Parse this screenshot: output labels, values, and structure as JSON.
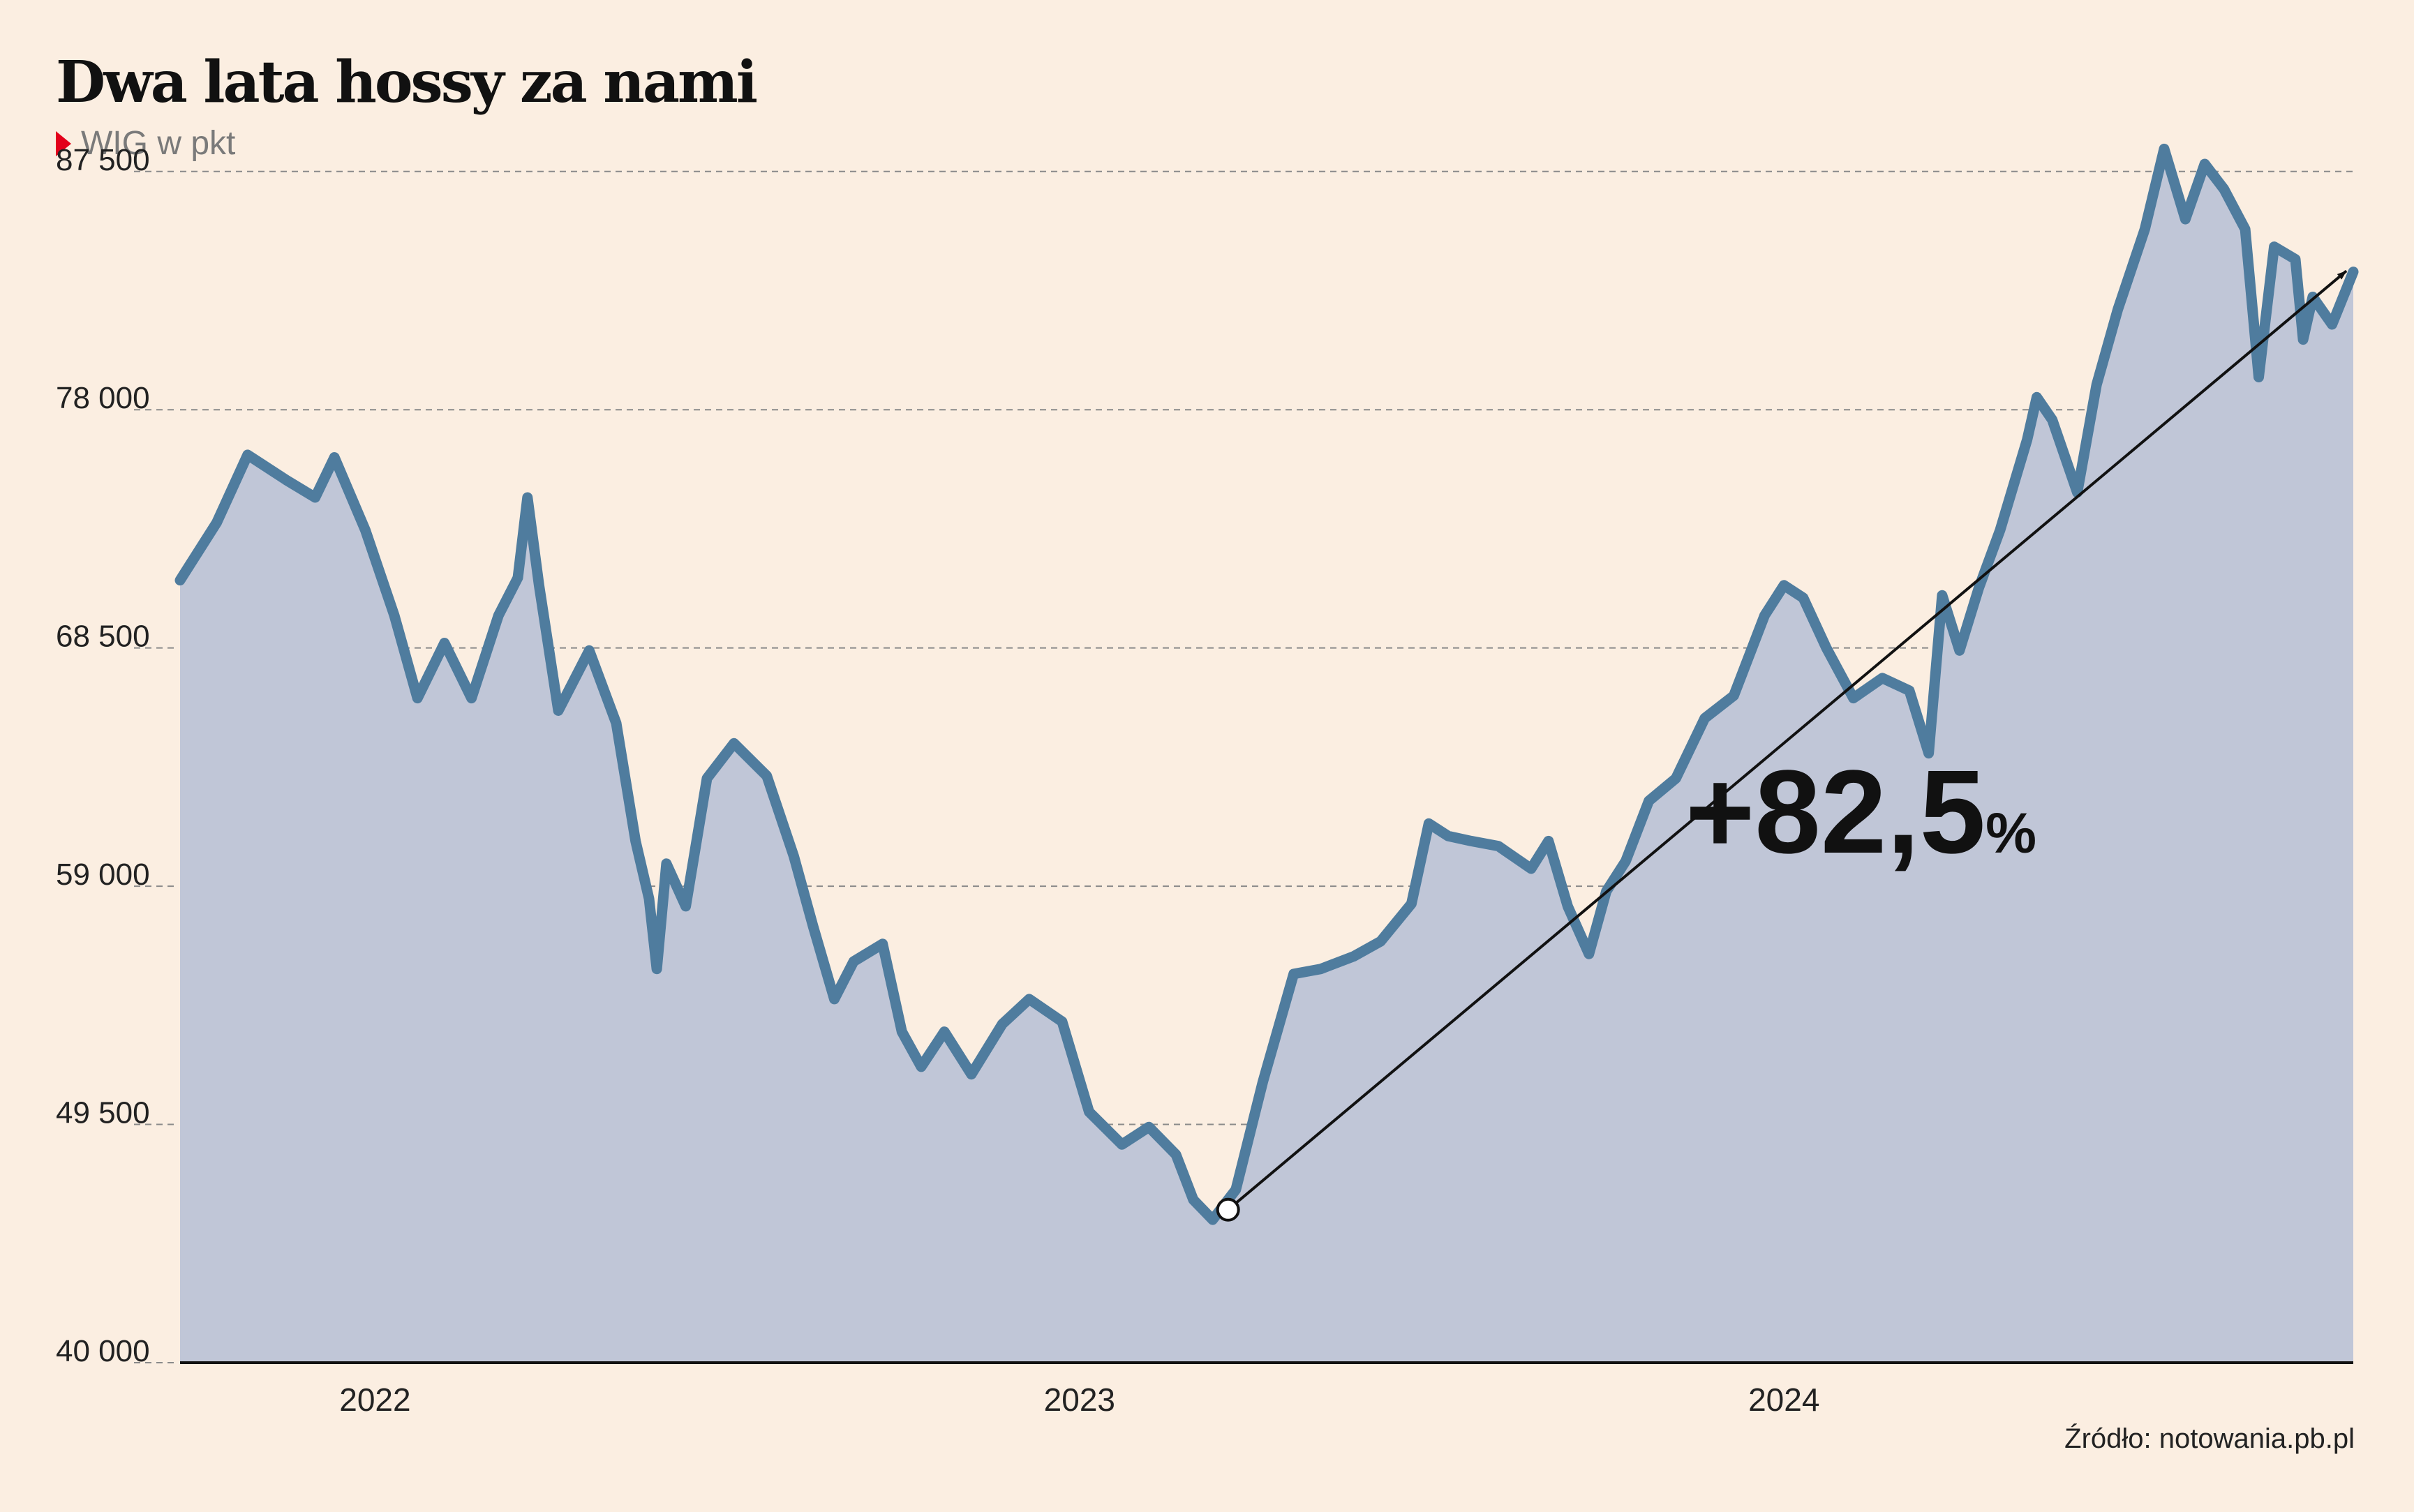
{
  "header": {
    "title": "Dwa lata hossy za nami",
    "subtitle": "WIG w pkt"
  },
  "footer": {
    "source": "Źródło: notowania.pb.pl"
  },
  "annotation": {
    "change_big": "+82,5",
    "change_unit": "%"
  },
  "colors": {
    "background": "#fbeee1",
    "line": "#4f7c9e",
    "area": "#c0c6d7",
    "marker_triangle": "#e3001b"
  },
  "chart_data": {
    "type": "area",
    "title": "Dwa lata hossy za nami",
    "subtitle": "WIG w pkt",
    "xlabel": "",
    "ylabel": "",
    "x_range": [
      "2021-10-01",
      "2024-10-31"
    ],
    "ylim": [
      40000,
      91000
    ],
    "y_ticks": [
      40000,
      49500,
      59000,
      68500,
      78000,
      87500
    ],
    "y_tick_labels": [
      "40 000",
      "49 500",
      "59 000",
      "68 500",
      "78 000",
      "87 500"
    ],
    "x_ticks": [
      "2022-01-01",
      "2023-01-01",
      "2024-01-01"
    ],
    "x_tick_labels": [
      "2022",
      "2023",
      "2024"
    ],
    "grid": "horizontal dashed",
    "series": [
      {
        "name": "",
        "points": [
          [
            "2021-10-01",
            71200
          ],
          [
            "2021-10-20",
            73500
          ],
          [
            "2021-11-05",
            76200
          ],
          [
            "2021-11-25",
            75200
          ],
          [
            "2021-12-10",
            74500
          ],
          [
            "2021-12-20",
            76100
          ],
          [
            "2022-01-05",
            73200
          ],
          [
            "2022-01-20",
            69800
          ],
          [
            "2022-02-01",
            66500
          ],
          [
            "2022-02-15",
            68700
          ],
          [
            "2022-03-01",
            66500
          ],
          [
            "2022-03-15",
            69800
          ],
          [
            "2022-03-25",
            71300
          ],
          [
            "2022-03-30",
            74500
          ],
          [
            "2022-04-05",
            71000
          ],
          [
            "2022-04-15",
            66000
          ],
          [
            "2022-05-01",
            68400
          ],
          [
            "2022-05-15",
            65500
          ],
          [
            "2022-05-25",
            60800
          ],
          [
            "2022-06-01",
            58500
          ],
          [
            "2022-06-05",
            55700
          ],
          [
            "2022-06-10",
            59900
          ],
          [
            "2022-06-20",
            58200
          ],
          [
            "2022-07-01",
            63300
          ],
          [
            "2022-07-15",
            64700
          ],
          [
            "2022-08-01",
            63400
          ],
          [
            "2022-08-15",
            60200
          ],
          [
            "2022-08-25",
            57400
          ],
          [
            "2022-09-05",
            54500
          ],
          [
            "2022-09-15",
            56000
          ],
          [
            "2022-09-30",
            56700
          ],
          [
            "2022-10-10",
            53200
          ],
          [
            "2022-10-20",
            51800
          ],
          [
            "2022-11-01",
            53200
          ],
          [
            "2022-11-15",
            51500
          ],
          [
            "2022-12-01",
            53500
          ],
          [
            "2022-12-15",
            54500
          ],
          [
            "2023-01-01",
            53600
          ],
          [
            "2023-01-15",
            50000
          ],
          [
            "2023-02-01",
            48700
          ],
          [
            "2023-02-15",
            49400
          ],
          [
            "2023-03-01",
            48300
          ],
          [
            "2023-03-10",
            46500
          ],
          [
            "2023-03-20",
            45700
          ],
          [
            "2023-04-01",
            46900
          ],
          [
            "2023-04-15",
            51200
          ],
          [
            "2023-05-01",
            55500
          ],
          [
            "2023-05-15",
            55700
          ],
          [
            "2023-06-01",
            56200
          ],
          [
            "2023-06-15",
            56800
          ],
          [
            "2023-07-01",
            58300
          ],
          [
            "2023-07-10",
            61500
          ],
          [
            "2023-07-20",
            61000
          ],
          [
            "2023-08-01",
            60800
          ],
          [
            "2023-08-15",
            60600
          ],
          [
            "2023-09-01",
            59700
          ],
          [
            "2023-09-10",
            60800
          ],
          [
            "2023-09-20",
            58200
          ],
          [
            "2023-10-01",
            56300
          ],
          [
            "2023-10-10",
            58800
          ],
          [
            "2023-10-20",
            60000
          ],
          [
            "2023-11-01",
            62400
          ],
          [
            "2023-11-15",
            63300
          ],
          [
            "2023-11-30",
            65700
          ],
          [
            "2023-12-15",
            66600
          ],
          [
            "2023-12-31",
            69800
          ],
          [
            "2024-01-10",
            71000
          ],
          [
            "2024-01-20",
            70500
          ],
          [
            "2024-02-01",
            68500
          ],
          [
            "2024-02-15",
            66500
          ],
          [
            "2024-03-01",
            67300
          ],
          [
            "2024-03-15",
            66800
          ],
          [
            "2024-03-25",
            64300
          ],
          [
            "2024-04-01",
            70600
          ],
          [
            "2024-04-10",
            68400
          ],
          [
            "2024-04-20",
            70900
          ],
          [
            "2024-05-01",
            73200
          ],
          [
            "2024-05-15",
            76800
          ],
          [
            "2024-05-20",
            78500
          ],
          [
            "2024-05-28",
            77600
          ],
          [
            "2024-06-10",
            74700
          ],
          [
            "2024-06-20",
            79000
          ],
          [
            "2024-07-01",
            82000
          ],
          [
            "2024-07-15",
            85200
          ],
          [
            "2024-07-25",
            88400
          ],
          [
            "2024-08-05",
            85600
          ],
          [
            "2024-08-15",
            87800
          ],
          [
            "2024-08-25",
            86800
          ],
          [
            "2024-09-05",
            85200
          ],
          [
            "2024-09-12",
            79300
          ],
          [
            "2024-09-20",
            84500
          ],
          [
            "2024-10-01",
            84000
          ],
          [
            "2024-10-05",
            80800
          ],
          [
            "2024-10-10",
            82500
          ],
          [
            "2024-10-20",
            81400
          ],
          [
            "2024-10-31",
            83500
          ]
        ]
      }
    ],
    "annotations": [
      {
        "type": "arrow",
        "from": [
          "2023-03-28",
          46100
        ],
        "to": [
          "2024-10-31",
          83700
        ],
        "label": "+82,5%"
      }
    ]
  }
}
